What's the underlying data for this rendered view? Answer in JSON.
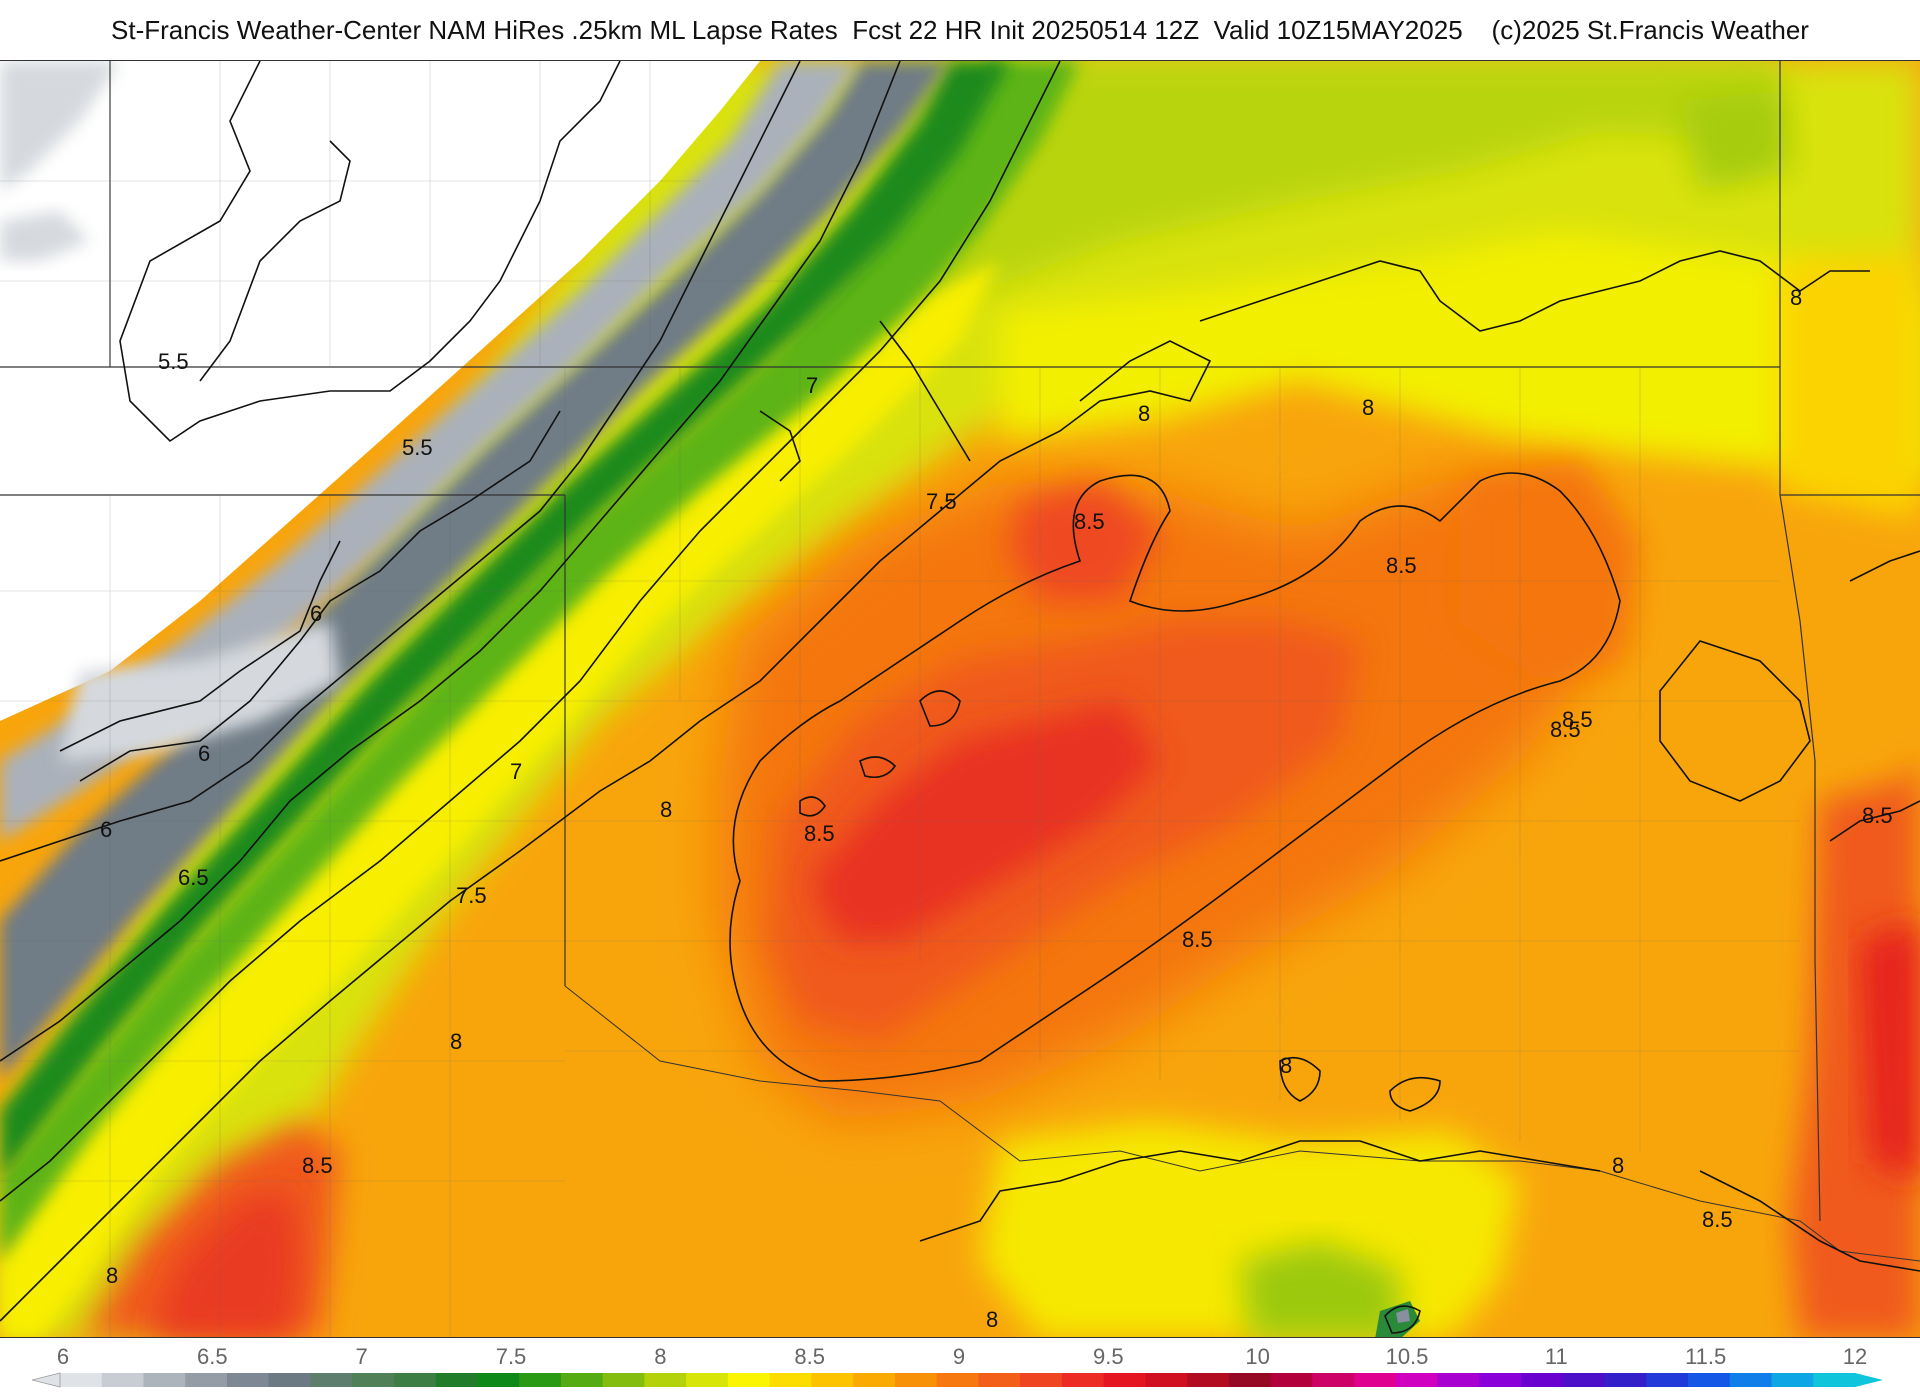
{
  "title": "St-Francis Weather-Center NAM HiRes .25km ML Lapse Rates  Fcst 22 HR Init 20250514 12Z  Valid 10Z15MAY2025    (c)2025 St.Francis Weather",
  "map": {
    "field": "ML Lapse Rates",
    "contour_labels": [
      "5.5",
      "5.5",
      "6",
      "6",
      "6",
      "6.5",
      "7",
      "7",
      "7.5",
      "7.5",
      "8",
      "8",
      "8",
      "8",
      "8",
      "8",
      "8",
      "8",
      "8",
      "8.5",
      "8.5",
      "8.5",
      "8.5",
      "8.5",
      "8.5",
      "8.5",
      "8.5",
      "8.5"
    ]
  },
  "colorbar": {
    "tick_labels": [
      "6",
      "6.5",
      "7",
      "7.5",
      "8",
      "8.5",
      "9",
      "9.5",
      "10",
      "10.5",
      "11",
      "11.5",
      "12"
    ],
    "colors": [
      "#dfe3e8",
      "#c8cdd4",
      "#aeb4bc",
      "#959ca6",
      "#7e8794",
      "#6c7a83",
      "#5f7d6c",
      "#4f7f57",
      "#3c7e43",
      "#217d2a",
      "#0f8a1a",
      "#2a9a14",
      "#55ab12",
      "#85bd0f",
      "#b3d20a",
      "#d8e607",
      "#fbf600",
      "#fddc00",
      "#fdc300",
      "#fbaa02",
      "#f99106",
      "#f6780f",
      "#f35f18",
      "#ef4520",
      "#ec2b24",
      "#e51620",
      "#d0101e",
      "#b20c20",
      "#950924",
      "#b3003d",
      "#cc0066",
      "#e0008f",
      "#d000c0",
      "#a800d0",
      "#8a00d8",
      "#6a00d0",
      "#4c10c8",
      "#3320c8",
      "#1f3ad8",
      "#1556e6",
      "#0f7ee8",
      "#0ea6e4",
      "#10c4dc"
    ]
  }
}
